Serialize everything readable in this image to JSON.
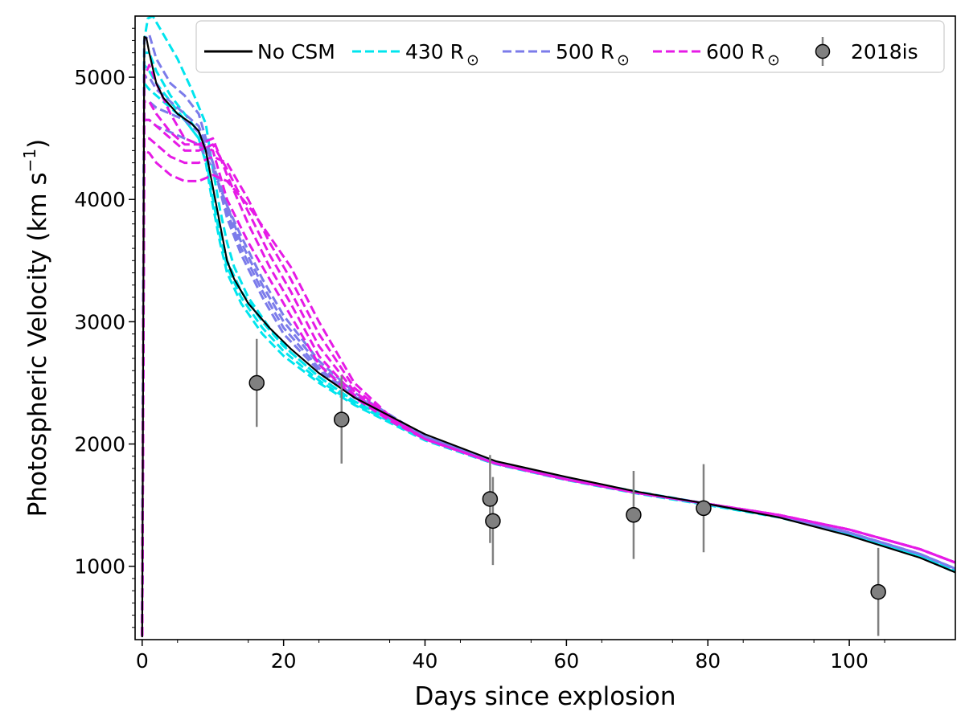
{
  "chart_data": {
    "type": "line",
    "title": "",
    "xlabel": "Days since explosion",
    "ylabel": "Photospheric Velocity (km s",
    "ylabel_sup": "−1",
    "ylabel_close": ")",
    "xlim": [
      -1,
      115
    ],
    "ylim": [
      400,
      5500
    ],
    "xticks": [
      0,
      20,
      40,
      60,
      80,
      100
    ],
    "xtick_labels": [
      "0",
      "20",
      "40",
      "60",
      "80",
      "100"
    ],
    "yticks": [
      1000,
      2000,
      3000,
      4000,
      5000
    ],
    "ytick_labels": [
      "1000",
      "2000",
      "3000",
      "4000",
      "5000"
    ],
    "grid": false,
    "legend_placement": "top-right",
    "legend": [
      {
        "label": "No CSM",
        "color": "#000000",
        "style": "solid"
      },
      {
        "label": "430 R",
        "sub": "⊙",
        "color": "#00e5ee",
        "style": "dashed"
      },
      {
        "label": "500 R",
        "sub": "⊙",
        "color": "#7b7bea",
        "style": "dashed"
      },
      {
        "label": "600 R",
        "sub": "⊙",
        "color": "#e61ae6",
        "style": "dashed"
      },
      {
        "label": "2018is",
        "color": "#808080",
        "style": "errorbar"
      }
    ],
    "series": [
      {
        "name": "No CSM",
        "color": "#000000",
        "style": "solid",
        "x": [
          0,
          0.3,
          0.6,
          1,
          2,
          3,
          5,
          7,
          8,
          9,
          10,
          11,
          12,
          13,
          15,
          18,
          21,
          25,
          30,
          35,
          40,
          50,
          60,
          70,
          80,
          90,
          100,
          110,
          115
        ],
        "y": [
          420,
          5330,
          5320,
          5200,
          4950,
          4830,
          4700,
          4620,
          4560,
          4400,
          4100,
          3800,
          3500,
          3350,
          3150,
          2950,
          2780,
          2580,
          2380,
          2230,
          2080,
          1860,
          1730,
          1610,
          1510,
          1400,
          1250,
          1070,
          950
        ]
      },
      {
        "name": "430 R⊙",
        "color": "#00e5ee",
        "style": "dashed",
        "members": [
          {
            "x": [
              0,
              0.3,
              0.8,
              1.5,
              3,
              5,
              7,
              9,
              10,
              11,
              12,
              13,
              15,
              18,
              21,
              25,
              30,
              40,
              50,
              60,
              70,
              80,
              90,
              100,
              110,
              115
            ],
            "y": [
              430,
              5300,
              5480,
              5500,
              5350,
              5150,
              4900,
              4620,
              4250,
              3920,
              3650,
              3450,
              3200,
              2950,
              2750,
              2550,
              2350,
              2050,
              1840,
              1710,
              1600,
              1510,
              1410,
              1270,
              1090,
              970
            ]
          },
          {
            "x": [
              0,
              0.3,
              1,
              2,
              4,
              6,
              8,
              9,
              10,
              11,
              12,
              14,
              17,
              20,
              25,
              30,
              40,
              50,
              60,
              70,
              80,
              90,
              100,
              110,
              115
            ],
            "y": [
              430,
              5200,
              5200,
              5050,
              4850,
              4700,
              4550,
              4400,
              4050,
              3750,
              3500,
              3250,
              3000,
              2800,
              2550,
              2350,
              2050,
              1850,
              1720,
              1610,
              1510,
              1410,
              1270,
              1090,
              960
            ]
          },
          {
            "x": [
              0,
              0.3,
              1,
              2,
              4,
              6,
              8,
              9,
              10,
              11,
              12,
              14,
              17,
              20,
              25,
              30,
              40,
              50,
              60,
              70,
              80,
              90,
              100,
              110,
              115
            ],
            "y": [
              430,
              5100,
              5050,
              4950,
              4800,
              4650,
              4500,
              4350,
              4000,
              3700,
              3450,
              3200,
              2950,
              2760,
              2520,
              2330,
              2040,
              1840,
              1710,
              1600,
              1505,
              1405,
              1265,
              1085,
              955
            ]
          },
          {
            "x": [
              0,
              0.3,
              1,
              2,
              4,
              6,
              8,
              9,
              10,
              11,
              12,
              14,
              17,
              20,
              25,
              30,
              40,
              50,
              60,
              70,
              80,
              90,
              100,
              110,
              115
            ],
            "y": [
              430,
              4950,
              4900,
              4850,
              4750,
              4650,
              4500,
              4300,
              3950,
              3650,
              3400,
              3150,
              2900,
              2720,
              2500,
              2320,
              2030,
              1835,
              1705,
              1595,
              1500,
              1400,
              1260,
              1080,
              950
            ]
          }
        ]
      },
      {
        "name": "500 R⊙",
        "color": "#7b7bea",
        "style": "dashed",
        "members": [
          {
            "x": [
              0,
              0.3,
              1,
              2,
              4,
              6,
              8,
              10,
              12,
              14,
              17,
              20,
              25,
              30,
              40,
              50,
              60,
              70,
              80,
              90,
              100,
              110,
              115
            ],
            "y": [
              430,
              5300,
              5350,
              5150,
              4950,
              4850,
              4700,
              4300,
              3850,
              3550,
              3200,
              2900,
              2600,
              2380,
              2060,
              1850,
              1720,
              1605,
              1510,
              1410,
              1275,
              1100,
              980
            ]
          },
          {
            "x": [
              0,
              0.3,
              1,
              2,
              4,
              6,
              8,
              10,
              12,
              14,
              17,
              20,
              25,
              30,
              40,
              50,
              60,
              70,
              80,
              90,
              100,
              110,
              115
            ],
            "y": [
              430,
              5000,
              5000,
              4900,
              4800,
              4700,
              4600,
              4300,
              3900,
              3600,
              3250,
              2950,
              2620,
              2390,
              2060,
              1850,
              1720,
              1605,
              1510,
              1410,
              1275,
              1100,
              980
            ]
          },
          {
            "x": [
              0,
              0.3,
              1,
              2,
              4,
              6,
              8,
              10,
              12,
              14,
              17,
              20,
              25,
              30,
              40,
              50,
              60,
              70,
              80,
              90,
              100,
              110,
              115
            ],
            "y": [
              430,
              4800,
              4800,
              4750,
              4700,
              4650,
              4550,
              4300,
              3950,
              3650,
              3300,
              3000,
              2650,
              2400,
              2060,
              1850,
              1720,
              1605,
              1510,
              1410,
              1275,
              1100,
              980
            ]
          },
          {
            "x": [
              0,
              0.3,
              1,
              2,
              4,
              6,
              8,
              10,
              12,
              14,
              17,
              20,
              25,
              30,
              40,
              50,
              60,
              70,
              80,
              90,
              100,
              110,
              115
            ],
            "y": [
              430,
              4650,
              4650,
              4600,
              4550,
              4500,
              4450,
              4250,
              3950,
              3700,
              3350,
              3050,
              2680,
              2420,
              2060,
              1850,
              1720,
              1605,
              1510,
              1410,
              1275,
              1100,
              980
            ]
          }
        ]
      },
      {
        "name": "600 R⊙",
        "color": "#e61ae6",
        "style": "dashed",
        "members": [
          {
            "x": [
              0,
              0.3,
              1,
              2,
              4,
              6,
              8,
              10,
              12,
              15,
              18,
              21,
              25,
              30,
              35,
              40,
              50,
              60,
              70,
              80,
              90,
              100,
              110,
              115
            ],
            "y": [
              430,
              5000,
              5100,
              4950,
              4700,
              4500,
              4450,
              4400,
              4000,
              3650,
              3350,
              3050,
              2650,
              2380,
              2190,
              2040,
              1840,
              1710,
              1600,
              1510,
              1420,
              1300,
              1140,
              1030
            ]
          },
          {
            "x": [
              0,
              0.3,
              1,
              2,
              4,
              6,
              8,
              10,
              12,
              15,
              18,
              21,
              25,
              30,
              35,
              40,
              50,
              60,
              70,
              80,
              90,
              100,
              110,
              115
            ],
            "y": [
              430,
              4800,
              4800,
              4700,
              4550,
              4450,
              4450,
              4500,
              4200,
              3800,
              3450,
              3150,
              2720,
              2400,
              2200,
              2040,
              1840,
              1710,
              1600,
              1510,
              1420,
              1300,
              1140,
              1030
            ]
          },
          {
            "x": [
              0,
              0.3,
              1,
              2,
              4,
              6,
              8,
              10,
              12,
              15,
              18,
              21,
              25,
              30,
              35,
              40,
              50,
              60,
              70,
              80,
              90,
              100,
              110,
              115
            ],
            "y": [
              430,
              4650,
              4650,
              4600,
              4500,
              4400,
              4400,
              4450,
              4250,
              3900,
              3550,
              3250,
              2800,
              2430,
              2210,
              2040,
              1840,
              1710,
              1600,
              1510,
              1420,
              1300,
              1140,
              1030
            ]
          },
          {
            "x": [
              0,
              0.3,
              1,
              2,
              4,
              6,
              8,
              10,
              12,
              15,
              18,
              21,
              25,
              30,
              35,
              40,
              50,
              60,
              70,
              80,
              90,
              100,
              110,
              115
            ],
            "y": [
              430,
              4500,
              4500,
              4450,
              4350,
              4300,
              4300,
              4350,
              4300,
              4000,
              3650,
              3350,
              2900,
              2460,
              2220,
              2040,
              1840,
              1710,
              1600,
              1510,
              1420,
              1300,
              1140,
              1030
            ]
          },
          {
            "x": [
              0,
              0.3,
              1,
              2,
              4,
              6,
              8,
              10,
              12,
              15,
              18,
              21,
              25,
              30,
              35,
              40,
              50,
              60,
              70,
              80,
              90,
              100,
              110,
              115
            ],
            "y": [
              430,
              4400,
              4380,
              4300,
              4200,
              4150,
              4150,
              4200,
              4150,
              3950,
              3700,
              3450,
              3000,
              2500,
              2230,
              2040,
              1840,
              1710,
              1600,
              1510,
              1420,
              1300,
              1140,
              1030
            ]
          }
        ]
      }
    ],
    "observations": {
      "name": "2018is",
      "color": "#808080",
      "marker_face": "#808080",
      "marker_edge": "#000000",
      "x": [
        16.2,
        28.2,
        49.2,
        49.6,
        69.5,
        79.4,
        104.1
      ],
      "y": [
        2500,
        2200,
        1550,
        1370,
        1420,
        1475,
        790
      ],
      "yerr": [
        360,
        360,
        360,
        360,
        360,
        360,
        360
      ]
    }
  }
}
